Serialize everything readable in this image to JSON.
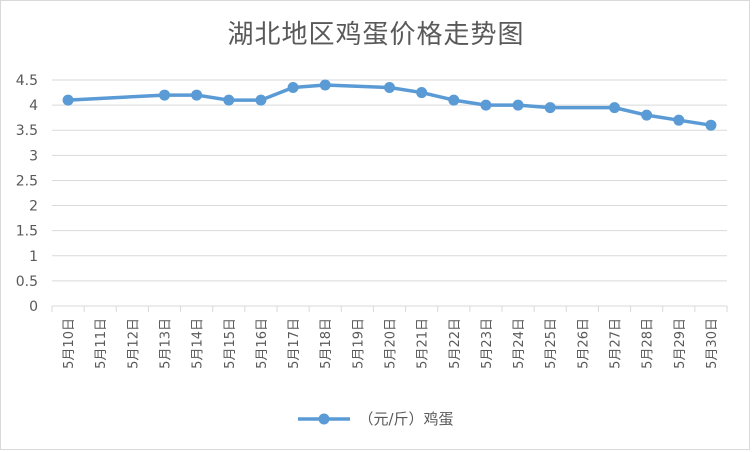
{
  "chart_data": {
    "type": "line",
    "title": "湖北地区鸡蛋价格走势图",
    "categories": [
      "5月10日",
      "5月11日",
      "5月12日",
      "5月13日",
      "5月14日",
      "5月15日",
      "5月16日",
      "5月17日",
      "5月18日",
      "5月19日",
      "5月20日",
      "5月21日",
      "5月22日",
      "5月23日",
      "5月24日",
      "5月25日",
      "5月26日",
      "5月27日",
      "5月28日",
      "5月29日",
      "5月30日"
    ],
    "series": [
      {
        "name": "（元/斤）鸡蛋",
        "values": [
          4.1,
          null,
          null,
          4.2,
          4.2,
          4.1,
          4.1,
          4.35,
          4.4,
          null,
          4.35,
          4.25,
          4.1,
          4.0,
          4.0,
          3.95,
          null,
          3.95,
          3.8,
          3.7,
          3.6
        ]
      }
    ],
    "yticks": [
      "0",
      "0.5",
      "1",
      "1.5",
      "2",
      "2.5",
      "3",
      "3.5",
      "4",
      "4.5"
    ],
    "ylim": [
      0,
      4.5
    ],
    "grid": true,
    "legend_position": "bottom",
    "colors": {
      "series": "#5b9bd5",
      "grid": "#d9d9d9",
      "text": "#595959"
    }
  }
}
